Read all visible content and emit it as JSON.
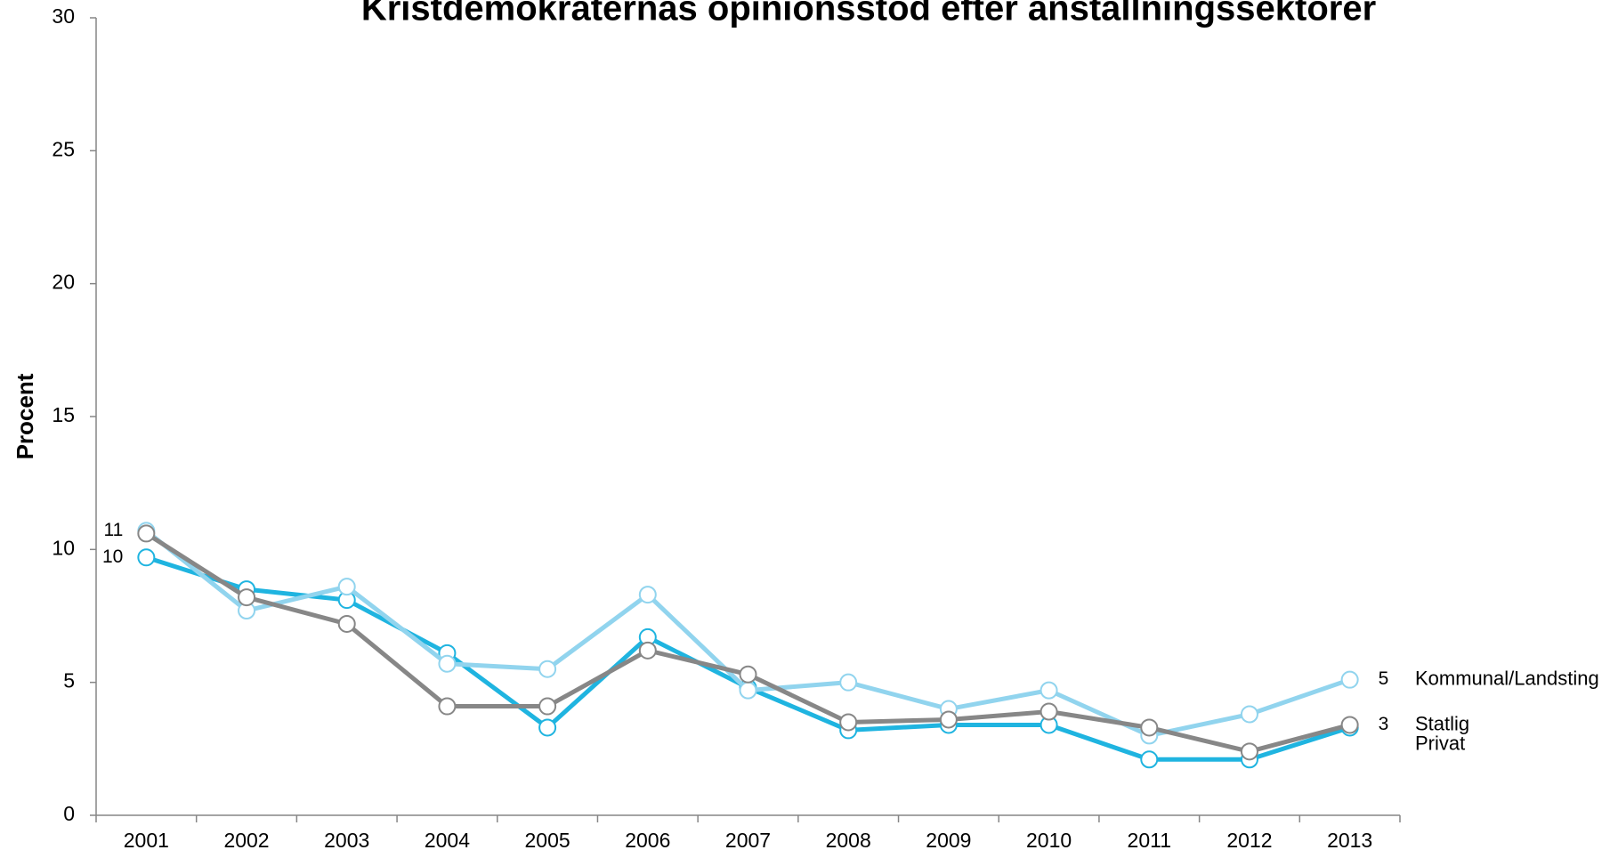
{
  "chart_data": {
    "type": "line",
    "title": "Kristdemokraternas opinionsstöd efter anställningssektorer",
    "ylabel": "Procent",
    "categories": [
      "2001",
      "2002",
      "2003",
      "2004",
      "2005",
      "2006",
      "2007",
      "2008",
      "2009",
      "2010",
      "2011",
      "2012",
      "2013"
    ],
    "ylim": [
      0,
      30
    ],
    "yticks": [
      0,
      5,
      10,
      15,
      20,
      25,
      30
    ],
    "grid": false,
    "series": [
      {
        "name": "Privat",
        "color": "#1fb4e0",
        "values": [
          9.7,
          8.5,
          8.1,
          6.1,
          3.3,
          6.7,
          4.8,
          3.2,
          3.4,
          3.4,
          2.1,
          2.1,
          3.3
        ],
        "value_labels": [
          "10",
          null,
          null,
          null,
          null,
          null,
          null,
          null,
          null,
          null,
          null,
          null,
          null
        ]
      },
      {
        "name": "Kommunal/Landsting",
        "color": "#91d4ee",
        "values": [
          10.7,
          7.7,
          8.6,
          5.7,
          5.5,
          8.3,
          4.7,
          5.0,
          4.0,
          4.7,
          3.0,
          3.8,
          5.1
        ],
        "value_labels": [
          "11",
          null,
          null,
          null,
          null,
          null,
          null,
          null,
          null,
          null,
          null,
          null,
          "5"
        ]
      },
      {
        "name": "Statlig",
        "color": "#878787",
        "values": [
          10.6,
          8.2,
          7.2,
          4.1,
          4.1,
          6.2,
          5.3,
          3.5,
          3.6,
          3.9,
          3.3,
          2.4,
          3.4
        ],
        "value_labels": [
          null,
          null,
          null,
          null,
          null,
          null,
          null,
          null,
          null,
          null,
          null,
          null,
          "3"
        ]
      }
    ]
  }
}
